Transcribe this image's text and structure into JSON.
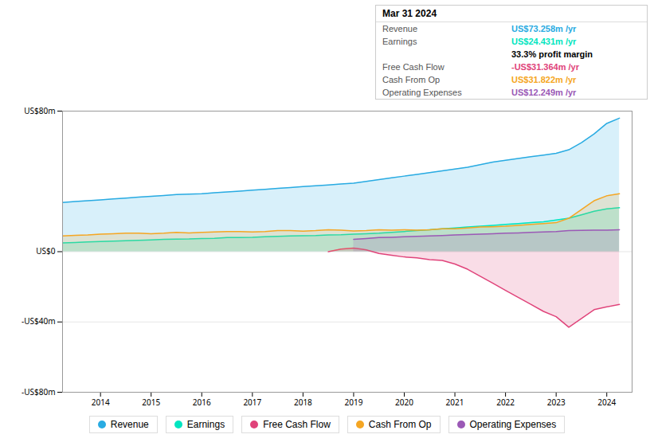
{
  "chart_data": {
    "type": "area",
    "xlim": [
      2013.25,
      2024.5
    ],
    "ylim": [
      -80,
      80
    ],
    "xticks": [
      2014,
      2015,
      2016,
      2017,
      2018,
      2019,
      2020,
      2021,
      2022,
      2023,
      2024
    ],
    "yticks": [
      {
        "value": -80,
        "label": "-US$80m"
      },
      {
        "value": -40,
        "label": "-US$40m"
      },
      {
        "value": 0,
        "label": "US$0"
      },
      {
        "value": 80,
        "label": "US$80m"
      }
    ],
    "grid": true,
    "legend": "bottom",
    "series": [
      {
        "name": "Revenue",
        "color": "#29abe2",
        "x": [
          2013.25,
          2013.5,
          2013.75,
          2014.0,
          2014.25,
          2014.5,
          2014.75,
          2015.0,
          2015.25,
          2015.5,
          2015.75,
          2016.0,
          2016.25,
          2016.5,
          2016.75,
          2017.0,
          2017.25,
          2017.5,
          2017.75,
          2018.0,
          2018.25,
          2018.5,
          2018.75,
          2019.0,
          2019.25,
          2019.5,
          2019.75,
          2020.0,
          2020.25,
          2020.5,
          2020.75,
          2021.0,
          2021.25,
          2021.5,
          2021.75,
          2022.0,
          2022.25,
          2022.5,
          2022.75,
          2023.0,
          2023.25,
          2023.5,
          2023.75,
          2024.0,
          2024.25
        ],
        "values": [
          28,
          28.5,
          29,
          29.5,
          30,
          30.5,
          31,
          31.5,
          32,
          32.5,
          32.8,
          33,
          33.5,
          34,
          34.5,
          35,
          35.5,
          36,
          36.5,
          37,
          37.5,
          38,
          38.5,
          39,
          40,
          41,
          42,
          43,
          44,
          45,
          46,
          47,
          48,
          49.5,
          51,
          52,
          53,
          54,
          55,
          56,
          58,
          62,
          67,
          73,
          76
        ]
      },
      {
        "name": "Earnings",
        "color": "#00e5c0",
        "x": [
          2013.25,
          2013.5,
          2013.75,
          2014.0,
          2014.25,
          2014.5,
          2014.75,
          2015.0,
          2015.25,
          2015.5,
          2015.75,
          2016.0,
          2016.25,
          2016.5,
          2016.75,
          2017.0,
          2017.25,
          2017.5,
          2017.75,
          2018.0,
          2018.25,
          2018.5,
          2018.75,
          2019.0,
          2019.25,
          2019.5,
          2019.75,
          2020.0,
          2020.25,
          2020.5,
          2020.75,
          2021.0,
          2021.25,
          2021.5,
          2021.75,
          2022.0,
          2022.25,
          2022.5,
          2022.75,
          2023.0,
          2023.25,
          2023.5,
          2023.75,
          2024.0,
          2024.25
        ],
        "values": [
          5,
          5.2,
          5.5,
          5.8,
          6,
          6.2,
          6.5,
          6.7,
          7,
          7.1,
          7.2,
          7.5,
          7.6,
          8,
          8.1,
          8.2,
          8.5,
          8.7,
          9,
          9.1,
          9.2,
          9.5,
          9.6,
          10,
          10.2,
          10.5,
          11,
          11.5,
          12,
          12.5,
          13,
          13.5,
          14,
          14.5,
          15,
          15.5,
          16,
          16.5,
          17,
          18,
          19,
          21,
          23,
          24.4,
          25
        ]
      },
      {
        "name": "Free Cash Flow",
        "color": "#e0437a",
        "x": [
          2018.5,
          2018.75,
          2019.0,
          2019.15,
          2019.25,
          2019.5,
          2019.75,
          2020.0,
          2020.25,
          2020.5,
          2020.75,
          2021.0,
          2021.25,
          2021.5,
          2021.75,
          2022.0,
          2022.25,
          2022.5,
          2022.75,
          2023.0,
          2023.25,
          2023.5,
          2023.75,
          2024.0,
          2024.25
        ],
        "values": [
          0,
          1.5,
          2,
          1.5,
          1.0,
          -1,
          -2,
          -3,
          -3.5,
          -4.5,
          -5,
          -7,
          -10,
          -14,
          -18,
          -22,
          -26,
          -30,
          -34,
          -37,
          -43,
          -38,
          -33,
          -31.4,
          -30
        ]
      },
      {
        "name": "Cash From Op",
        "color": "#f5a623",
        "x": [
          2013.25,
          2013.5,
          2013.75,
          2014.0,
          2014.25,
          2014.5,
          2014.75,
          2015.0,
          2015.25,
          2015.5,
          2015.75,
          2016.0,
          2016.25,
          2016.5,
          2016.75,
          2017.0,
          2017.25,
          2017.5,
          2017.75,
          2018.0,
          2018.25,
          2018.5,
          2018.75,
          2019.0,
          2019.25,
          2019.5,
          2019.75,
          2020.0,
          2020.25,
          2020.5,
          2020.75,
          2021.0,
          2021.25,
          2021.5,
          2021.75,
          2022.0,
          2022.25,
          2022.5,
          2022.75,
          2023.0,
          2023.25,
          2023.5,
          2023.75,
          2024.0,
          2024.25
        ],
        "values": [
          9,
          9.3,
          9.5,
          10,
          10.2,
          10.5,
          10.5,
          10.2,
          10.5,
          11,
          10.7,
          11,
          11.2,
          11.5,
          11.5,
          11.2,
          11.5,
          12,
          12,
          11.7,
          12,
          12.5,
          12.2,
          11.8,
          12,
          12.5,
          12.2,
          12.5,
          12.2,
          12.5,
          13,
          13,
          13.5,
          14,
          14.2,
          14.5,
          15,
          15.5,
          16,
          16.5,
          19,
          24,
          29,
          31.8,
          33
        ]
      },
      {
        "name": "Operating Expenses",
        "color": "#9b59b6",
        "x": [
          2019.0,
          2019.25,
          2019.5,
          2019.75,
          2020.0,
          2020.25,
          2020.5,
          2020.75,
          2021.0,
          2021.25,
          2021.5,
          2021.75,
          2022.0,
          2022.25,
          2022.5,
          2022.75,
          2023.0,
          2023.25,
          2023.5,
          2023.75,
          2024.0,
          2024.25
        ],
        "values": [
          7,
          7.5,
          8,
          8.2,
          8.5,
          8.7,
          9,
          9.2,
          9.5,
          9.7,
          10,
          10.2,
          10.5,
          10.7,
          11,
          11.2,
          11.5,
          12,
          12.1,
          12.2,
          12.25,
          12.5
        ]
      }
    ],
    "annotations": {
      "title": "Mar 31 2024",
      "rows": [
        {
          "label": "Revenue",
          "value": "US$73.258m /yr",
          "color": "#29abe2"
        },
        {
          "label": "Earnings",
          "value": "US$24.431m /yr",
          "color": "#00e5c0"
        },
        {
          "value": "33.3% profit margin"
        },
        {
          "label": "Free Cash Flow",
          "value": "-US$31.364m /yr",
          "color": "#e0437a"
        },
        {
          "label": "Cash From Op",
          "value": "US$31.822m /yr",
          "color": "#f5a623"
        },
        {
          "label": "Operating Expenses",
          "value": "US$12.249m /yr",
          "color": "#9b59b6"
        }
      ]
    }
  }
}
